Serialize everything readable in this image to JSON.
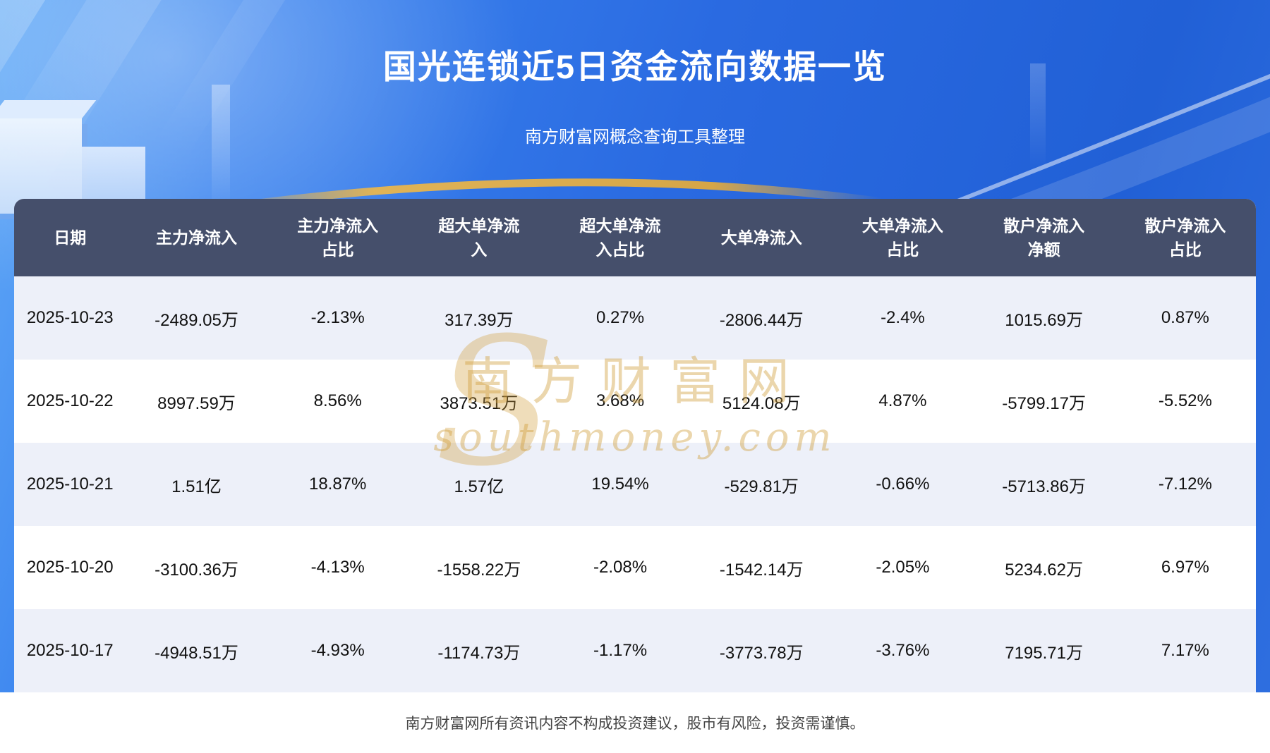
{
  "header": {
    "title": "国光连锁近5日资金流向数据一览",
    "subtitle": "南方财富网概念查询工具整理"
  },
  "watermark": {
    "symbol": "S",
    "line1": "南方财富网",
    "line2": "southmoney.com"
  },
  "footer": {
    "disclaimer": "南方财富网所有资讯内容不构成投资建议，股市有风险，投资需谨慎。"
  },
  "colors": {
    "background_blue": "#2a6ae1",
    "table_header_bg": "#454f6b",
    "row_alt_bg": "#edf0f9",
    "accent_gold": "#e2ae4a",
    "watermark_gold": "#d09d3a"
  },
  "chart_data": {
    "type": "table",
    "title": "国光连锁近5日资金流向数据一览",
    "columns": [
      "日期",
      "主力净流入",
      "主力净流入占比",
      "超大单净流入",
      "超大单净流入占比",
      "大单净流入",
      "大单净流入占比",
      "散户净流入净额",
      "散户净流入占比"
    ],
    "rows": [
      [
        "2025-10-23",
        "-2489.05万",
        "-2.13%",
        "317.39万",
        "0.27%",
        "-2806.44万",
        "-2.4%",
        "1015.69万",
        "0.87%"
      ],
      [
        "2025-10-22",
        "8997.59万",
        "8.56%",
        "3873.51万",
        "3.68%",
        "5124.08万",
        "4.87%",
        "-5799.17万",
        "-5.52%"
      ],
      [
        "2025-10-21",
        "1.51亿",
        "18.87%",
        "1.57亿",
        "19.54%",
        "-529.81万",
        "-0.66%",
        "-5713.86万",
        "-7.12%"
      ],
      [
        "2025-10-20",
        "-3100.36万",
        "-4.13%",
        "-1558.22万",
        "-2.08%",
        "-1542.14万",
        "-2.05%",
        "5234.62万",
        "6.97%"
      ],
      [
        "2025-10-17",
        "-4948.51万",
        "-4.93%",
        "-1174.73万",
        "-1.17%",
        "-3773.78万",
        "-3.76%",
        "7195.71万",
        "7.17%"
      ]
    ]
  }
}
